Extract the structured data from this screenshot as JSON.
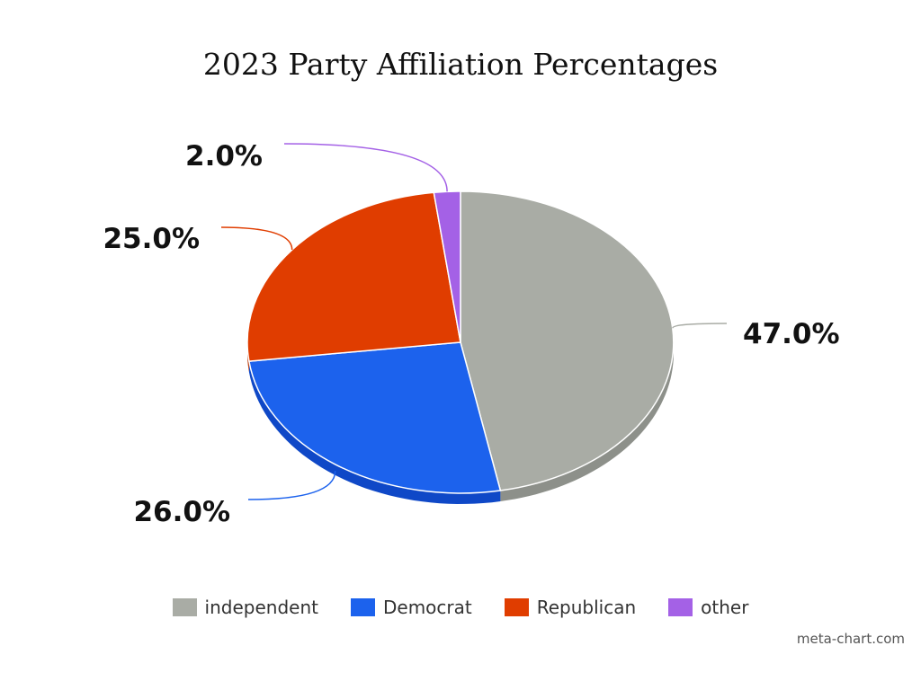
{
  "chart_data": {
    "type": "pie",
    "title": "2023 Party Affiliation Percentages",
    "slices": [
      {
        "label": "independent",
        "value": 47.0,
        "display": "47.0%",
        "color": "#a9aca5",
        "shade": "#8d908a"
      },
      {
        "label": "Democrat",
        "value": 26.0,
        "display": "26.0%",
        "color": "#1c62ed",
        "shade": "#0f48c7"
      },
      {
        "label": "Republican",
        "value": 25.0,
        "display": "25.0%",
        "color": "#e03d00",
        "shade": "#b83200"
      },
      {
        "label": "other",
        "value": 2.0,
        "display": "2.0%",
        "color": "#a461e6",
        "shade": "#8448c4"
      }
    ],
    "legend_position": "bottom",
    "style": "3d-pie"
  },
  "credit": "meta-chart.com"
}
